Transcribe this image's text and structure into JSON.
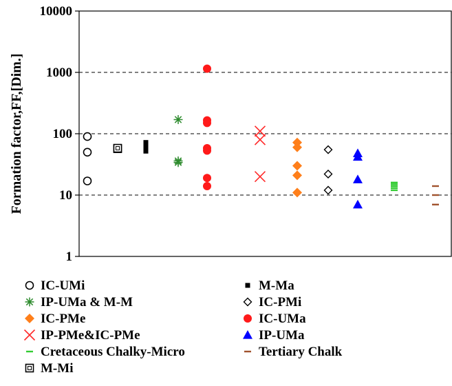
{
  "chart_data": {
    "type": "scatter",
    "title": "",
    "xlabel": "",
    "ylabel": "Formation factor,FF,[Dim.]",
    "y_scale": "log",
    "ylim": [
      1,
      10000
    ],
    "y_ticks": [
      "1",
      "10",
      "100",
      "1000",
      "10000"
    ],
    "grid": "horizontal dashed at 10, 100, 1000",
    "legend_position": "bottom",
    "series": [
      {
        "name": "IC-UMi",
        "marker": "open-circle",
        "color": "#000000",
        "x": 1,
        "values": [
          90,
          50,
          17
        ]
      },
      {
        "name": "M-Mi",
        "marker": "open-square",
        "color": "#000000",
        "x": 2,
        "values": [
          57,
          58
        ]
      },
      {
        "name": "M-Ma",
        "marker": "filled-square",
        "color": "#000000",
        "x": 3,
        "values": [
          72,
          62,
          57,
          52
        ]
      },
      {
        "name": "IP-UMa & M-M",
        "marker": "asterisk",
        "color": "#2e8b2e",
        "x": 4,
        "values": [
          170,
          36,
          34
        ]
      },
      {
        "name": "IC-UMa",
        "marker": "filled-circle",
        "color": "#ff1a1a",
        "x": 5,
        "values": [
          1150,
          165,
          150,
          58,
          53,
          19,
          14
        ]
      },
      {
        "name": "IP-PMe&IC-PMe",
        "marker": "x",
        "color": "#ff2a2a",
        "x": 6,
        "values": [
          110,
          80,
          20
        ]
      },
      {
        "name": "IC-PMe",
        "marker": "filled-diamond",
        "color": "#ff7f1a",
        "x": 7,
        "values": [
          72,
          60,
          30,
          21,
          11
        ]
      },
      {
        "name": "IC-PMi",
        "marker": "open-diamond",
        "color": "#000000",
        "x": 8,
        "values": [
          55,
          22,
          12
        ]
      },
      {
        "name": "IP-UMa",
        "marker": "filled-triangle",
        "color": "#0000ff",
        "x": 9,
        "values": [
          48,
          42,
          18,
          7
        ]
      },
      {
        "name": "Cretaceous Chalky-Micro",
        "marker": "dash",
        "color": "#33cc33",
        "x": 10,
        "values": [
          16,
          15,
          14,
          13,
          12
        ]
      },
      {
        "name": "Tertiary Chalk",
        "marker": "dash",
        "color": "#a0522d",
        "x": 11,
        "values": [
          14,
          10,
          7
        ]
      }
    ],
    "legend_order": [
      "IC-UMi",
      "M-Ma",
      "IP-UMa & M-M",
      "IC-PMi",
      "IC-PMe",
      "IC-UMa",
      "IP-PMe&IC-PMe",
      "IP-UMa",
      "Cretaceous Chalky-Micro",
      "Tertiary Chalk",
      "M-Mi"
    ]
  }
}
